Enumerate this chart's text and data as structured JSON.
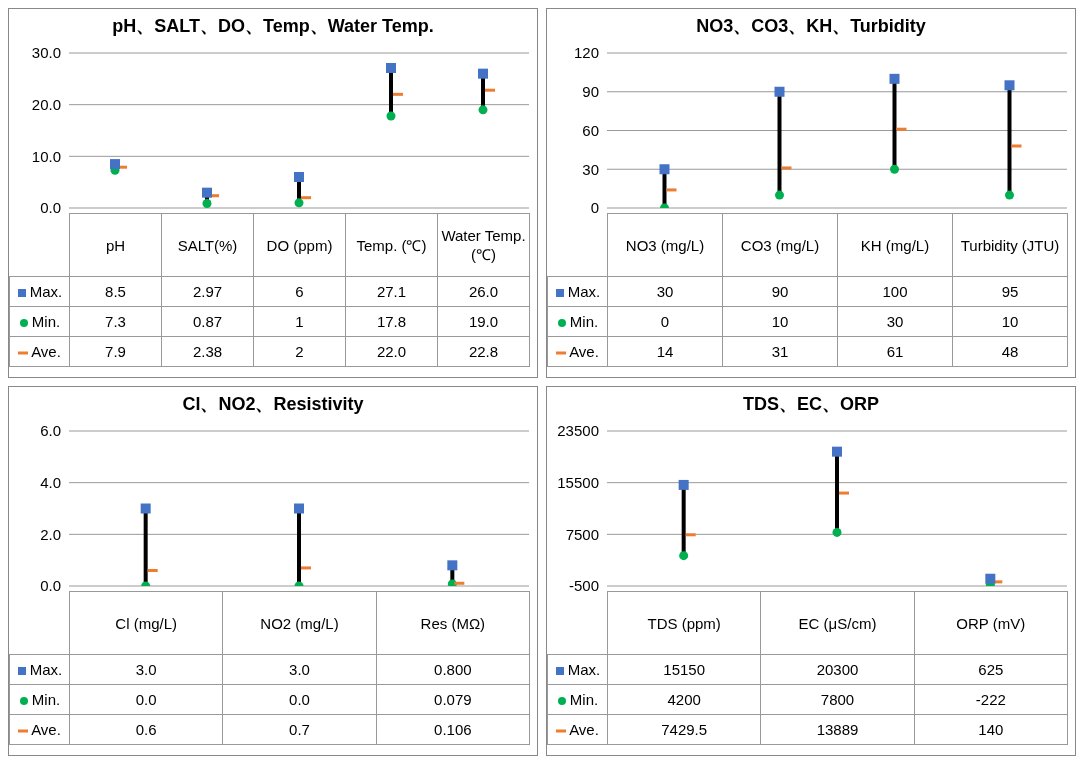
{
  "chart_data": [
    {
      "type": "scatter",
      "title": "pH、SALT、DO、Temp、Water Temp.",
      "categories": [
        "pH",
        "SALT(%)",
        "DO (ppm)",
        "Temp. (℃)",
        "Water Temp. (℃)"
      ],
      "ylim": [
        0,
        30
      ],
      "legend": "bottom left",
      "yticks": [
        {
          "value": 0,
          "label": "0.0"
        },
        {
          "value": 10,
          "label": "10.0"
        },
        {
          "value": 20,
          "label": "20.0"
        },
        {
          "value": 30,
          "label": "30.0"
        }
      ],
      "grid": "y",
      "series": [
        {
          "name": "Max.",
          "color": "#4472c4",
          "marker": "square",
          "values": [
            8.5,
            2.97,
            6,
            27.1,
            26.0
          ],
          "value_labels": [
            "8.5",
            "2.97",
            "6",
            "27.1",
            "26.0"
          ]
        },
        {
          "name": "Min.",
          "color": "#00b050",
          "marker": "circle",
          "values": [
            7.3,
            0.87,
            1,
            17.8,
            19.0
          ],
          "value_labels": [
            "7.3",
            "0.87",
            "1",
            "17.8",
            "19.0"
          ]
        },
        {
          "name": "Ave.",
          "color": "#ed7d31",
          "values": [
            7.9,
            2.38,
            2,
            22.0,
            22.8
          ],
          "value_labels": [
            "7.9",
            "2.38",
            "2",
            "22.0",
            "22.8"
          ]
        }
      ]
    },
    {
      "type": "scatter",
      "title": "NO3、CO3、KH、Turbidity",
      "categories": [
        "NO3 (mg/L)",
        "CO3 (mg/L)",
        "KH (mg/L)",
        "Turbidity (JTU)"
      ],
      "ylim": [
        0,
        120
      ],
      "legend": "bottom left",
      "yticks": [
        0,
        30,
        60,
        90,
        120
      ],
      "grid": "y",
      "series": [
        {
          "name": "Max.",
          "color": "#4472c4",
          "marker": "square",
          "values": [
            30,
            90,
            100,
            95
          ],
          "value_labels": [
            "30",
            "90",
            "100",
            "95"
          ]
        },
        {
          "name": "Min.",
          "color": "#00b050",
          "marker": "circle",
          "values": [
            0,
            10,
            30,
            10
          ],
          "value_labels": [
            "0",
            "10",
            "30",
            "10"
          ]
        },
        {
          "name": "Ave.",
          "color": "#ed7d31",
          "values": [
            14,
            31,
            61,
            48
          ],
          "value_labels": [
            "14",
            "31",
            "61",
            "48"
          ]
        }
      ]
    },
    {
      "type": "scatter",
      "title": "Cl、NO2、Resistivity",
      "categories": [
        "Cl (mg/L)",
        "NO2 (mg/L)",
        "Res (MΩ)"
      ],
      "ylim": [
        0,
        6
      ],
      "legend": "bottom left",
      "yticks": [
        {
          "value": 0,
          "label": "0.0"
        },
        {
          "value": 2,
          "label": "2.0"
        },
        {
          "value": 4,
          "label": "4.0"
        },
        {
          "value": 6,
          "label": "6.0"
        }
      ],
      "grid": "y",
      "series": [
        {
          "name": "Max.",
          "color": "#4472c4",
          "marker": "square",
          "values": [
            3.0,
            3.0,
            0.8
          ],
          "value_labels": [
            "3.0",
            "3.0",
            "0.800"
          ]
        },
        {
          "name": "Min.",
          "color": "#00b050",
          "marker": "circle",
          "values": [
            0,
            0,
            0.079
          ],
          "value_labels": [
            "0.0",
            "0.0",
            "0.079"
          ]
        },
        {
          "name": "Ave.",
          "color": "#ed7d31",
          "values": [
            0.6,
            0.7,
            0.106
          ],
          "value_labels": [
            "0.6",
            "0.7",
            "0.106"
          ]
        }
      ]
    },
    {
      "type": "scatter",
      "title": "TDS、EC、ORP",
      "categories": [
        "TDS (ppm)",
        "EC (μS/cm)",
        "ORP (mV)"
      ],
      "ylim": [
        -500,
        23500
      ],
      "legend": "bottom left",
      "yticks": [
        -500,
        7500,
        15500,
        23500
      ],
      "grid": "y",
      "series": [
        {
          "name": "Max.",
          "color": "#4472c4",
          "marker": "square",
          "values": [
            15150,
            20300,
            625
          ],
          "value_labels": [
            "15150",
            "20300",
            "625"
          ]
        },
        {
          "name": "Min.",
          "color": "#00b050",
          "marker": "circle",
          "values": [
            4200,
            7800,
            -222
          ],
          "value_labels": [
            "4200",
            "7800",
            "-222"
          ]
        },
        {
          "name": "Ave.",
          "color": "#ed7d31",
          "values": [
            7429.5,
            13889,
            140
          ],
          "value_labels": [
            "7429.5",
            "13889",
            "140"
          ]
        }
      ]
    }
  ]
}
